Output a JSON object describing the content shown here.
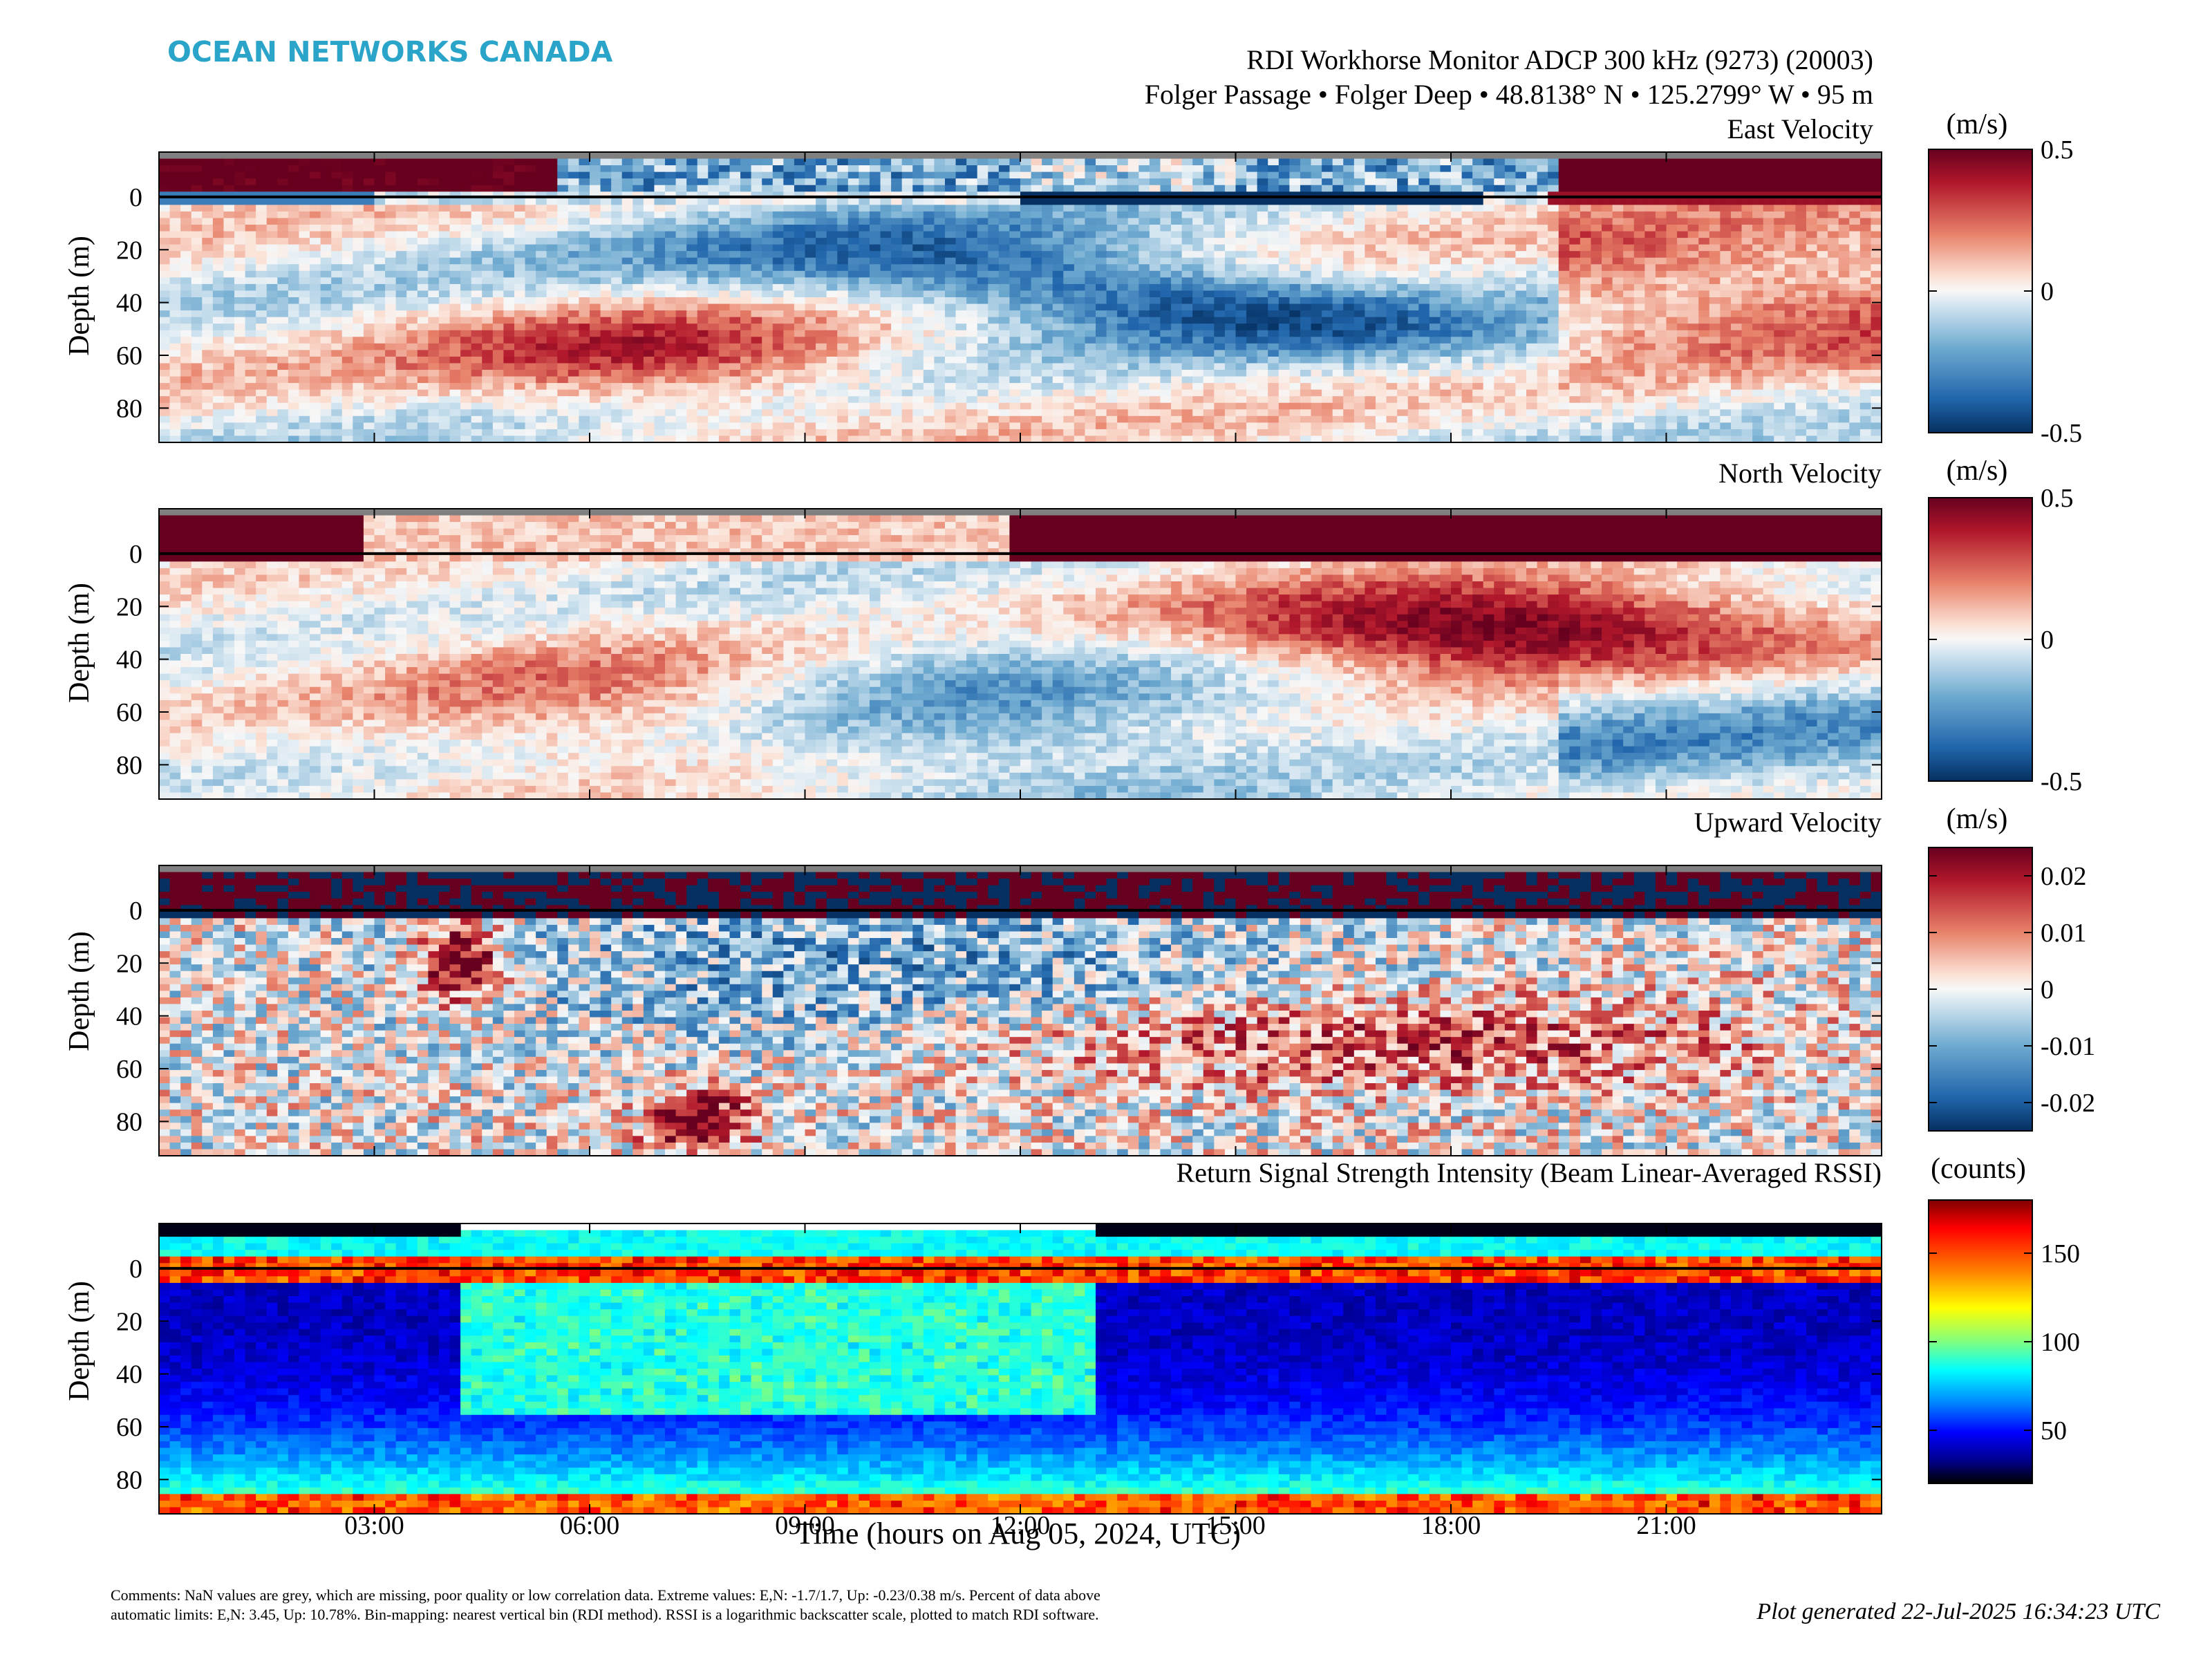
{
  "brand": "OCEAN NETWORKS CANADA",
  "header": {
    "title_line1": "RDI Workhorse Monitor ADCP 300 kHz (9273) (20003)",
    "title_line2": "Folger Passage • Folger Deep • 48.8138° N • 125.2799° W • 95 m"
  },
  "chart_data": [
    {
      "type": "heatmap",
      "title": "East Velocity",
      "ylabel": "Depth (m)",
      "ylim": [
        93,
        -17
      ],
      "yticks": [
        "0",
        "20",
        "40",
        "60",
        "80"
      ],
      "xlim_hours": [
        0,
        24
      ],
      "xticks": [
        "03:00",
        "06:00",
        "09:00",
        "12:00",
        "15:00",
        "18:00",
        "21:00"
      ],
      "colorbar_unit": "(m/s)",
      "colorbar_ticks": [
        "0.5",
        "0",
        "-0.5"
      ],
      "colorbar_range": [
        -0.5,
        0.5
      ],
      "colormap": "red-white-blue diverging",
      "surface_line_depth": 0,
      "nan_color": "#808080"
    },
    {
      "type": "heatmap",
      "title": "North Velocity",
      "ylabel": "Depth (m)",
      "ylim": [
        93,
        -17
      ],
      "yticks": [
        "0",
        "20",
        "40",
        "60",
        "80"
      ],
      "xlim_hours": [
        0,
        24
      ],
      "colorbar_unit": "(m/s)",
      "colorbar_ticks": [
        "0.5",
        "0",
        "-0.5"
      ],
      "colorbar_range": [
        -0.5,
        0.5
      ],
      "colormap": "red-white-blue diverging"
    },
    {
      "type": "heatmap",
      "title": "Upward Velocity",
      "ylabel": "Depth (m)",
      "ylim": [
        93,
        -17
      ],
      "yticks": [
        "0",
        "20",
        "40",
        "60",
        "80"
      ],
      "xlim_hours": [
        0,
        24
      ],
      "colorbar_unit": "(m/s)",
      "colorbar_ticks": [
        "0.02",
        "0.01",
        "0",
        "-0.01",
        "-0.02"
      ],
      "colorbar_range": [
        -0.025,
        0.025
      ],
      "colormap": "red-white-blue diverging"
    },
    {
      "type": "heatmap",
      "title": "Return Signal Strength Intensity (Beam Linear-Averaged RSSI)",
      "ylabel": "Depth (m)",
      "ylim": [
        93,
        -17
      ],
      "yticks": [
        "0",
        "20",
        "40",
        "60",
        "80"
      ],
      "xlim_hours": [
        0,
        24
      ],
      "colorbar_unit": "(counts)",
      "colorbar_ticks": [
        "150",
        "100",
        "50"
      ],
      "colorbar_range": [
        20,
        180
      ],
      "colormap": "jet"
    }
  ],
  "xlabel": "Time (hours on Aug 05, 2024, UTC)",
  "footer": {
    "comments_line1": "Comments: NaN values are grey, which are missing, poor quality or low correlation data. Extreme values: E,N: -1.7/1.7, Up: -0.23/0.38 m/s. Percent of data above",
    "comments_line2": "automatic limits: E,N: 3.45, Up: 10.78%. Bin-mapping: nearest vertical bin (RDI method). RSSI is a logarithmic backscatter scale, plotted to match RDI software.",
    "generated": "Plot generated 22-Jul-2025 16:34:23 UTC"
  }
}
